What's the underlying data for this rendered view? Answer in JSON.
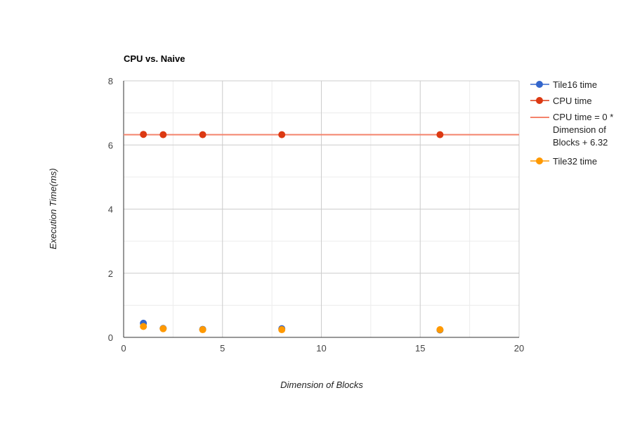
{
  "chart_data": {
    "type": "scatter",
    "title": "CPU vs. Naive",
    "xlabel": "Dimension of Blocks",
    "ylabel": "Execution Time(ms)",
    "xlim": [
      0,
      20
    ],
    "ylim": [
      0,
      8
    ],
    "x_ticks": [
      0,
      5,
      10,
      15,
      20
    ],
    "y_ticks": [
      0,
      2,
      4,
      6,
      8
    ],
    "grid": true,
    "legend_position": "right",
    "series": [
      {
        "name": "Tile16 time",
        "color": "#3366cc",
        "x": [
          1,
          2,
          4,
          8,
          16
        ],
        "y": [
          0.44,
          0.28,
          0.25,
          0.27,
          0.23
        ]
      },
      {
        "name": "CPU time",
        "color": "#dc3912",
        "x": [
          1,
          2,
          4,
          8,
          16
        ],
        "y": [
          6.33,
          6.32,
          6.32,
          6.32,
          6.32
        ]
      },
      {
        "name": "Tile32 time",
        "color": "#ff9900",
        "x": [
          1,
          2,
          4,
          8,
          16
        ],
        "y": [
          0.34,
          0.27,
          0.24,
          0.24,
          0.24
        ]
      }
    ],
    "trendline": {
      "label": "CPU time = 0 * Dimension of Blocks + 6.32",
      "label_lines": [
        "CPU time = 0 *",
        "Dimension of",
        "Blocks + 6.32"
      ],
      "color": "#f4836c",
      "slope": 0,
      "intercept": 6.32
    },
    "legend_order": [
      "Tile16 time",
      "CPU time",
      "trendline",
      "Tile32 time"
    ]
  }
}
